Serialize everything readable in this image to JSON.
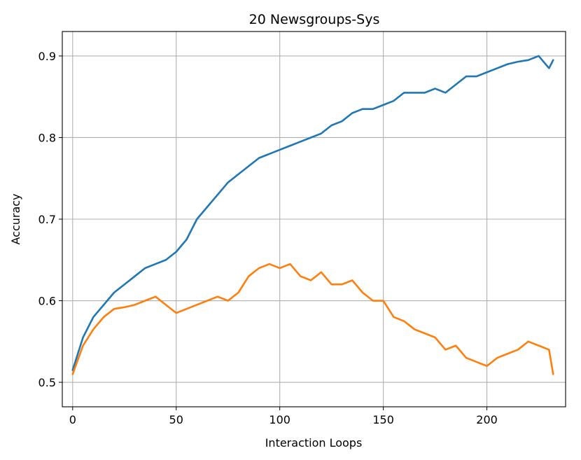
{
  "chart_data": {
    "type": "line",
    "title": "20 Newsgroups-Sys",
    "xlabel": "Interaction Loops",
    "ylabel": "Accuracy",
    "xlim": [
      -5,
      238
    ],
    "ylim": [
      0.47,
      0.93
    ],
    "xticks": [
      0,
      50,
      100,
      150,
      200
    ],
    "yticks": [
      0.5,
      0.6,
      0.7,
      0.8,
      0.9
    ],
    "xtick_labels": [
      "0",
      "50",
      "100",
      "150",
      "200"
    ],
    "ytick_labels": [
      "0.5",
      "0.6",
      "0.7",
      "0.8",
      "0.9"
    ],
    "grid": true,
    "legend": "none",
    "series": [
      {
        "color": "#1f77b4",
        "x": [
          0,
          5,
          10,
          15,
          20,
          25,
          30,
          35,
          40,
          45,
          50,
          55,
          60,
          65,
          70,
          75,
          80,
          85,
          90,
          95,
          100,
          105,
          110,
          115,
          120,
          125,
          130,
          135,
          140,
          145,
          150,
          155,
          160,
          165,
          170,
          175,
          180,
          185,
          190,
          195,
          200,
          205,
          210,
          215,
          220,
          225,
          230,
          232
        ],
        "y": [
          0.515,
          0.555,
          0.58,
          0.595,
          0.61,
          0.62,
          0.63,
          0.64,
          0.645,
          0.65,
          0.66,
          0.675,
          0.7,
          0.715,
          0.73,
          0.745,
          0.755,
          0.765,
          0.775,
          0.78,
          0.785,
          0.79,
          0.795,
          0.8,
          0.805,
          0.815,
          0.82,
          0.83,
          0.835,
          0.835,
          0.84,
          0.845,
          0.855,
          0.855,
          0.855,
          0.86,
          0.855,
          0.865,
          0.875,
          0.875,
          0.88,
          0.885,
          0.89,
          0.893,
          0.895,
          0.9,
          0.885,
          0.895
        ]
      },
      {
        "color": "#ff7f0e",
        "x": [
          0,
          5,
          10,
          15,
          20,
          25,
          30,
          35,
          40,
          45,
          50,
          55,
          60,
          65,
          70,
          75,
          80,
          85,
          90,
          95,
          100,
          105,
          110,
          115,
          120,
          125,
          130,
          135,
          140,
          145,
          150,
          155,
          160,
          165,
          170,
          175,
          180,
          185,
          190,
          195,
          200,
          205,
          210,
          215,
          220,
          225,
          230,
          232
        ],
        "y": [
          0.51,
          0.545,
          0.565,
          0.58,
          0.59,
          0.592,
          0.595,
          0.6,
          0.605,
          0.595,
          0.585,
          0.59,
          0.595,
          0.6,
          0.605,
          0.6,
          0.61,
          0.63,
          0.64,
          0.645,
          0.64,
          0.645,
          0.63,
          0.625,
          0.635,
          0.62,
          0.62,
          0.625,
          0.61,
          0.6,
          0.6,
          0.58,
          0.575,
          0.565,
          0.56,
          0.555,
          0.54,
          0.545,
          0.53,
          0.525,
          0.52,
          0.53,
          0.535,
          0.54,
          0.55,
          0.545,
          0.54,
          0.51
        ]
      }
    ]
  }
}
